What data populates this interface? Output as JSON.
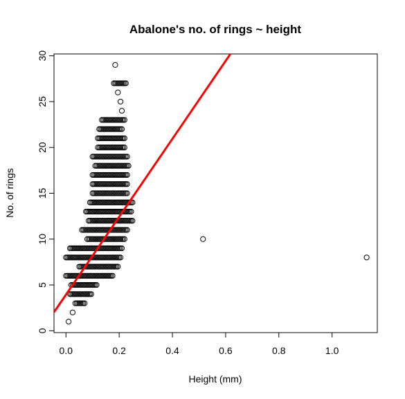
{
  "chart_data": {
    "type": "scatter",
    "title": "Abalone's no. of rings ~ height",
    "xlabel": "Height (mm)",
    "ylabel": "No. of rings",
    "xlim": [
      -0.045,
      1.17
    ],
    "ylim": [
      -0.2,
      30.2
    ],
    "xticks": [
      "0.0",
      "0.2",
      "0.4",
      "0.6",
      "0.8",
      "1.0"
    ],
    "yticks": [
      "0",
      "5",
      "10",
      "15",
      "20",
      "25",
      "30"
    ],
    "grid": false,
    "point_color": "#000000",
    "regression_line": {
      "color": "#ff0000",
      "intercept": 3.94,
      "slope": 42.5
    },
    "ring_ranges": [
      {
        "rings": 1,
        "min": 0.01,
        "max": 0.01
      },
      {
        "rings": 2,
        "min": 0.025,
        "max": 0.025
      },
      {
        "rings": 3,
        "min": 0.035,
        "max": 0.07
      },
      {
        "rings": 4,
        "min": 0.015,
        "max": 0.095
      },
      {
        "rings": 5,
        "min": 0.02,
        "max": 0.115
      },
      {
        "rings": 6,
        "min": 0.0,
        "max": 0.175
      },
      {
        "rings": 7,
        "min": 0.05,
        "max": 0.195
      },
      {
        "rings": 8,
        "min": 0.0,
        "max": 0.205
      },
      {
        "rings": 9,
        "min": 0.015,
        "max": 0.21
      },
      {
        "rings": 10,
        "min": 0.08,
        "max": 0.22
      },
      {
        "rings": 11,
        "min": 0.06,
        "max": 0.23
      },
      {
        "rings": 12,
        "min": 0.085,
        "max": 0.25
      },
      {
        "rings": 13,
        "min": 0.075,
        "max": 0.245
      },
      {
        "rings": 14,
        "min": 0.09,
        "max": 0.25
      },
      {
        "rings": 15,
        "min": 0.1,
        "max": 0.23
      },
      {
        "rings": 16,
        "min": 0.1,
        "max": 0.23
      },
      {
        "rings": 17,
        "min": 0.1,
        "max": 0.23
      },
      {
        "rings": 18,
        "min": 0.11,
        "max": 0.235
      },
      {
        "rings": 19,
        "min": 0.1,
        "max": 0.23
      },
      {
        "rings": 20,
        "min": 0.12,
        "max": 0.22
      },
      {
        "rings": 21,
        "min": 0.12,
        "max": 0.22
      },
      {
        "rings": 22,
        "min": 0.125,
        "max": 0.21
      },
      {
        "rings": 23,
        "min": 0.135,
        "max": 0.22
      },
      {
        "rings": 24,
        "min": 0.21,
        "max": 0.21
      },
      {
        "rings": 25,
        "min": 0.205,
        "max": 0.205
      },
      {
        "rings": 26,
        "min": 0.195,
        "max": 0.195
      },
      {
        "rings": 27,
        "min": 0.18,
        "max": 0.225
      },
      {
        "rings": 29,
        "min": 0.185,
        "max": 0.185
      }
    ],
    "outliers": [
      {
        "x": 0.515,
        "y": 10
      },
      {
        "x": 1.13,
        "y": 8
      }
    ]
  }
}
